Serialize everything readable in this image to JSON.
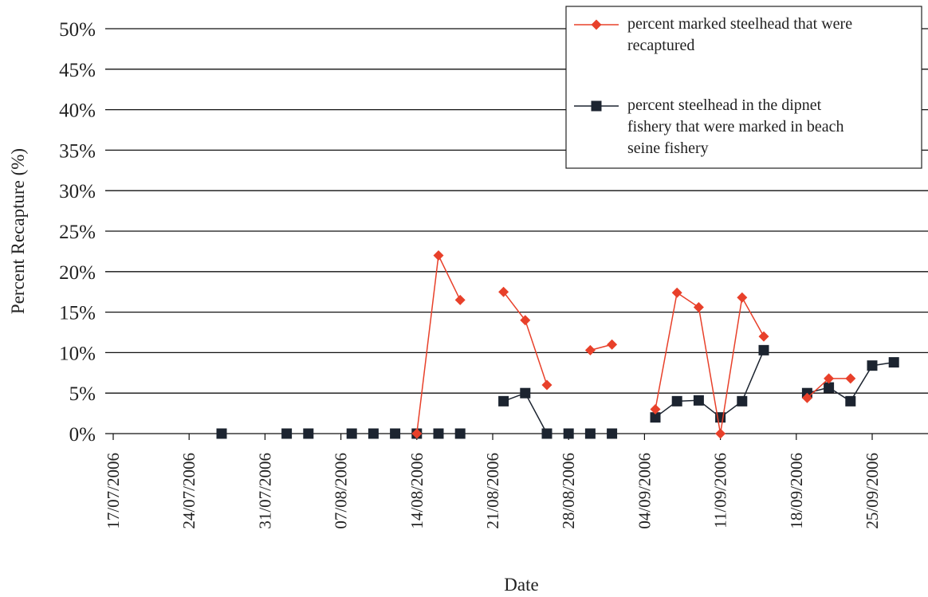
{
  "chart_data": {
    "type": "line",
    "title": "",
    "xlabel": "Date",
    "ylabel": "Percent Recapture (%)",
    "ylim": [
      0,
      50
    ],
    "yticks": [
      "0%",
      "5%",
      "10%",
      "15%",
      "20%",
      "25%",
      "30%",
      "35%",
      "40%",
      "45%",
      "50%"
    ],
    "x_start": "17/07/2006",
    "xticks": [
      "17/07/2006",
      "24/07/2006",
      "31/07/2006",
      "07/08/2006",
      "14/08/2006",
      "21/08/2006",
      "28/08/2006",
      "04/09/2006",
      "11/09/2006",
      "18/09/2006",
      "25/09/2006"
    ],
    "grid": "horizontal",
    "legend_position": "top-right",
    "series": [
      {
        "name": "percent marked steelhead that were recaptured",
        "color": "#e8402a",
        "marker": "diamond",
        "segments": [
          [
            [
              "14/08/2006",
              0
            ],
            [
              "16/08/2006",
              22
            ],
            [
              "18/08/2006",
              16.5
            ]
          ],
          [
            [
              "22/08/2006",
              17.5
            ],
            [
              "24/08/2006",
              14
            ],
            [
              "26/08/2006",
              6
            ]
          ],
          [
            [
              "30/08/2006",
              10.3
            ],
            [
              "01/09/2006",
              11
            ]
          ],
          [
            [
              "05/09/2006",
              3
            ],
            [
              "07/09/2006",
              17.4
            ],
            [
              "09/09/2006",
              15.6
            ],
            [
              "11/09/2006",
              0
            ],
            [
              "13/09/2006",
              16.8
            ],
            [
              "15/09/2006",
              12
            ]
          ],
          [
            [
              "19/09/2006",
              4.4
            ],
            [
              "21/09/2006",
              6.8
            ],
            [
              "23/09/2006",
              6.8
            ]
          ]
        ]
      },
      {
        "name": "percent steelhead in the dipnet fishery that were marked in beach seine fishery",
        "color": "#1c2430",
        "marker": "square",
        "segments": [
          [
            [
              "27/07/2006",
              0
            ]
          ],
          [
            [
              "02/08/2006",
              0
            ]
          ],
          [
            [
              "04/08/2006",
              0
            ]
          ],
          [
            [
              "08/08/2006",
              0
            ]
          ],
          [
            [
              "10/08/2006",
              0
            ]
          ],
          [
            [
              "12/08/2006",
              0
            ]
          ],
          [
            [
              "14/08/2006",
              0
            ]
          ],
          [
            [
              "16/08/2006",
              0
            ]
          ],
          [
            [
              "18/08/2006",
              0
            ]
          ],
          [
            [
              "22/08/2006",
              4
            ],
            [
              "24/08/2006",
              5
            ],
            [
              "26/08/2006",
              0
            ]
          ],
          [
            [
              "28/08/2006",
              0
            ]
          ],
          [
            [
              "30/08/2006",
              0
            ]
          ],
          [
            [
              "01/09/2006",
              0
            ]
          ],
          [
            [
              "05/09/2006",
              2
            ],
            [
              "07/09/2006",
              4
            ],
            [
              "09/09/2006",
              4.1
            ],
            [
              "11/09/2006",
              2
            ],
            [
              "13/09/2006",
              4
            ],
            [
              "15/09/2006",
              10.3
            ]
          ],
          [
            [
              "19/09/2006",
              5
            ],
            [
              "21/09/2006",
              5.7
            ],
            [
              "23/09/2006",
              4
            ],
            [
              "25/09/2006",
              8.4
            ],
            [
              "27/09/2006",
              8.8
            ]
          ]
        ]
      }
    ]
  }
}
